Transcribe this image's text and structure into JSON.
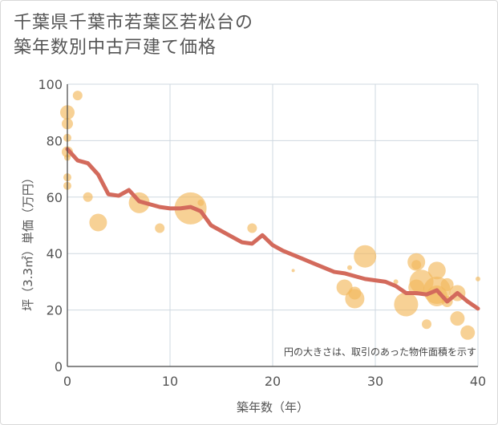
{
  "title": {
    "line1": "千葉県千葉市若葉区若松台の",
    "line2": "築年数別中古戸建て価格"
  },
  "colors": {
    "bubble": "#f3b85c",
    "line": "#d36a5c",
    "grid": "#cfd8e0",
    "axis": "#444444",
    "text": "#555555"
  },
  "chart_data": {
    "type": "scatter",
    "xlabel": "築年数（年）",
    "ylabel": "坪（3.3㎡）単価（万円）",
    "xlim": [
      0,
      40
    ],
    "ylim": [
      0,
      100
    ],
    "xticks": [
      0,
      10,
      20,
      30,
      40
    ],
    "yticks": [
      0,
      20,
      40,
      60,
      80,
      100
    ],
    "grid": true,
    "annotation": "円の大きさは、取引のあった物件面積を示す",
    "bubbles": [
      {
        "x": 0,
        "y": 90,
        "r": 9
      },
      {
        "x": 0,
        "y": 86,
        "r": 7
      },
      {
        "x": 0,
        "y": 81,
        "r": 5
      },
      {
        "x": 0,
        "y": 76,
        "r": 7
      },
      {
        "x": 0,
        "y": 74,
        "r": 4
      },
      {
        "x": 0,
        "y": 67,
        "r": 5
      },
      {
        "x": 0,
        "y": 64,
        "r": 5
      },
      {
        "x": 1,
        "y": 96,
        "r": 6
      },
      {
        "x": 2,
        "y": 60,
        "r": 6
      },
      {
        "x": 3,
        "y": 51,
        "r": 11
      },
      {
        "x": 7,
        "y": 58,
        "r": 13
      },
      {
        "x": 9,
        "y": 49,
        "r": 6
      },
      {
        "x": 12,
        "y": 56,
        "r": 20
      },
      {
        "x": 13,
        "y": 58,
        "r": 4
      },
      {
        "x": 18,
        "y": 49,
        "r": 6
      },
      {
        "x": 22,
        "y": 34,
        "r": 2
      },
      {
        "x": 27,
        "y": 28,
        "r": 10
      },
      {
        "x": 27.5,
        "y": 35,
        "r": 3
      },
      {
        "x": 28,
        "y": 24,
        "r": 12
      },
      {
        "x": 28,
        "y": 26,
        "r": 8
      },
      {
        "x": 29,
        "y": 39,
        "r": 14
      },
      {
        "x": 32,
        "y": 30,
        "r": 3
      },
      {
        "x": 33,
        "y": 22,
        "r": 15
      },
      {
        "x": 34,
        "y": 37,
        "r": 11
      },
      {
        "x": 34,
        "y": 36,
        "r": 6
      },
      {
        "x": 34,
        "y": 28,
        "r": 10
      },
      {
        "x": 34.5,
        "y": 30,
        "r": 15
      },
      {
        "x": 35,
        "y": 15,
        "r": 6
      },
      {
        "x": 36,
        "y": 34,
        "r": 11
      },
      {
        "x": 36,
        "y": 25,
        "r": 13
      },
      {
        "x": 36,
        "y": 27,
        "r": 17
      },
      {
        "x": 37,
        "y": 29,
        "r": 8
      },
      {
        "x": 37,
        "y": 23,
        "r": 7
      },
      {
        "x": 38,
        "y": 26,
        "r": 10
      },
      {
        "x": 38,
        "y": 17,
        "r": 9
      },
      {
        "x": 39,
        "y": 12,
        "r": 9
      },
      {
        "x": 40,
        "y": 31,
        "r": 3
      }
    ],
    "series": [
      {
        "x": [
          0,
          1,
          2,
          3,
          4,
          5,
          6,
          7,
          8,
          9,
          10,
          11,
          12,
          13,
          14,
          15,
          16,
          17,
          18,
          19,
          20,
          21,
          22,
          23,
          24,
          25,
          26,
          27,
          28,
          29,
          30,
          31,
          32,
          33,
          34,
          35,
          36,
          37,
          38,
          39,
          40
        ],
        "values": [
          77,
          73,
          72,
          68,
          61,
          60.5,
          62.5,
          58.5,
          57.5,
          56.5,
          56,
          56,
          56.5,
          55,
          50,
          48,
          46,
          44,
          43.5,
          46.5,
          43,
          41,
          39.5,
          38,
          36.5,
          35,
          33.5,
          33,
          32,
          31,
          30.5,
          30,
          28.5,
          26,
          26,
          25.5,
          27,
          23,
          26,
          23,
          20.5
        ]
      }
    ]
  }
}
